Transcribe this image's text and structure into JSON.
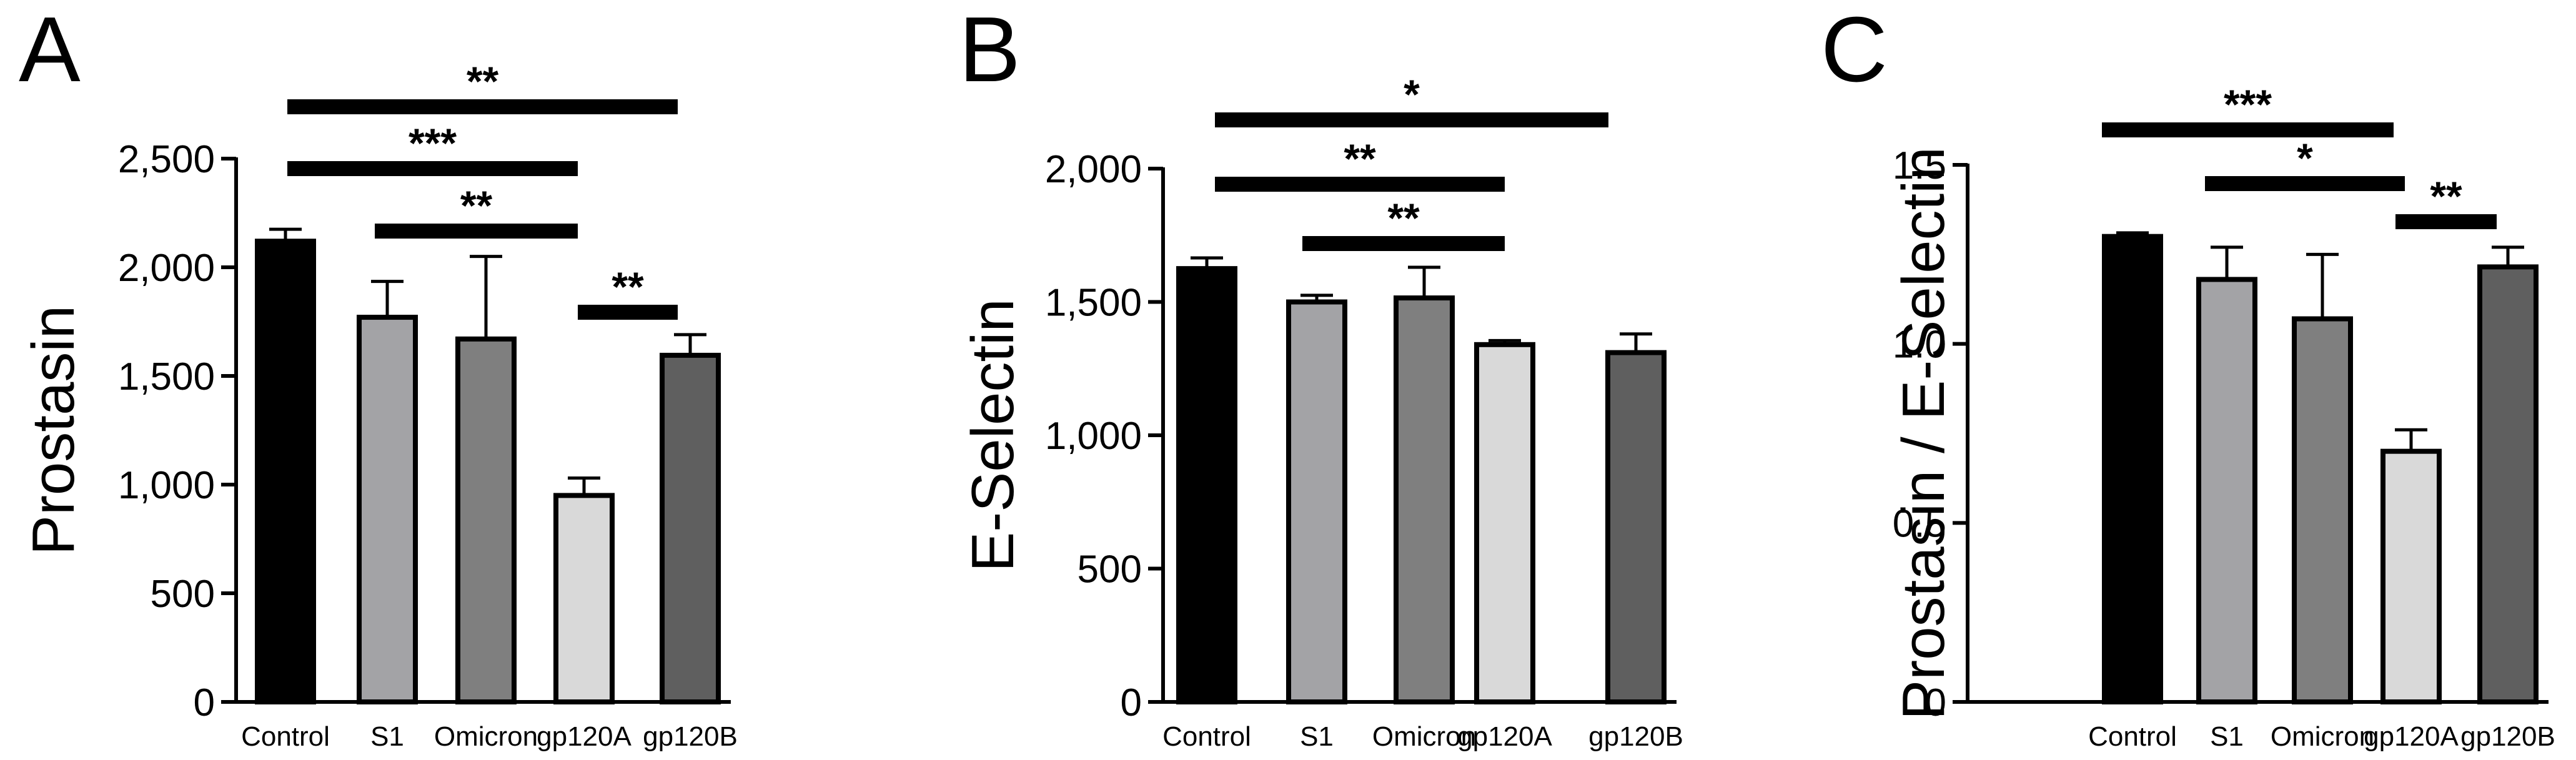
{
  "chart_data": [
    {
      "type": "bar",
      "panel_label": "A",
      "ylabel": "Prostasin",
      "xlabel": "",
      "categories": [
        "Control",
        "S1",
        "Omicron",
        "gp120A",
        "gp120B"
      ],
      "values": [
        2120,
        1770,
        1670,
        950,
        1595
      ],
      "errors": [
        55,
        165,
        380,
        80,
        95
      ],
      "ylim": [
        0,
        2500
      ],
      "yticks": [
        0,
        500,
        1000,
        1500,
        2000,
        2500
      ],
      "ytick_labels": [
        "0",
        "500",
        "1,000",
        "1,500",
        "2,000",
        "2,500"
      ],
      "significance": [
        {
          "from": 0,
          "to": 4,
          "label": "**"
        },
        {
          "from": 0,
          "to": 3,
          "label": "***"
        },
        {
          "from": 1,
          "to": 3,
          "label": "**"
        },
        {
          "from": 3,
          "to": 4,
          "label": "**"
        }
      ],
      "grid": false,
      "legend": "none"
    },
    {
      "type": "bar",
      "panel_label": "B",
      "ylabel": "E-Selectin",
      "xlabel": "",
      "categories": [
        "Control",
        "S1",
        "Omicron",
        "gp120A",
        "gp120B"
      ],
      "values": [
        1625,
        1500,
        1515,
        1340,
        1310
      ],
      "errors": [
        40,
        25,
        115,
        15,
        70
      ],
      "ylim": [
        0,
        2000
      ],
      "yticks": [
        0,
        500,
        1000,
        1500,
        2000
      ],
      "ytick_labels": [
        "0",
        "500",
        "1,000",
        "1,500",
        "2,000"
      ],
      "significance": [
        {
          "from": 0,
          "to": 4,
          "label": "*"
        },
        {
          "from": 0,
          "to": 3,
          "label": "**"
        },
        {
          "from": 1,
          "to": 3,
          "label": "**"
        }
      ],
      "grid": false,
      "legend": "none"
    },
    {
      "type": "bar",
      "panel_label": "C",
      "ylabel": "Prostasin / E-Selectin",
      "xlabel": "",
      "categories": [
        "Control",
        "S1",
        "Omicron",
        "gp120A",
        "gp120B"
      ],
      "values": [
        1.3,
        1.18,
        1.07,
        0.7,
        1.215
      ],
      "errors": [
        0.01,
        0.09,
        0.18,
        0.06,
        0.055
      ],
      "ylim": [
        0,
        1.5
      ],
      "yticks": [
        0,
        0.5,
        1.0,
        1.5
      ],
      "ytick_labels": [
        "0",
        "0.5",
        "1.0",
        "1.5"
      ],
      "significance": [
        {
          "from": 0,
          "to": 3,
          "label": "***"
        },
        {
          "from": 1,
          "to": 3,
          "label": "*"
        },
        {
          "from": 3,
          "to": 4,
          "label": "**"
        }
      ],
      "grid": false,
      "legend": "none"
    }
  ],
  "colors": {
    "bars": [
      "#000000",
      "#a3a3a6",
      "#7f7f7f",
      "#d9d9d9",
      "#5f5f5f"
    ],
    "axis": "#000000"
  }
}
